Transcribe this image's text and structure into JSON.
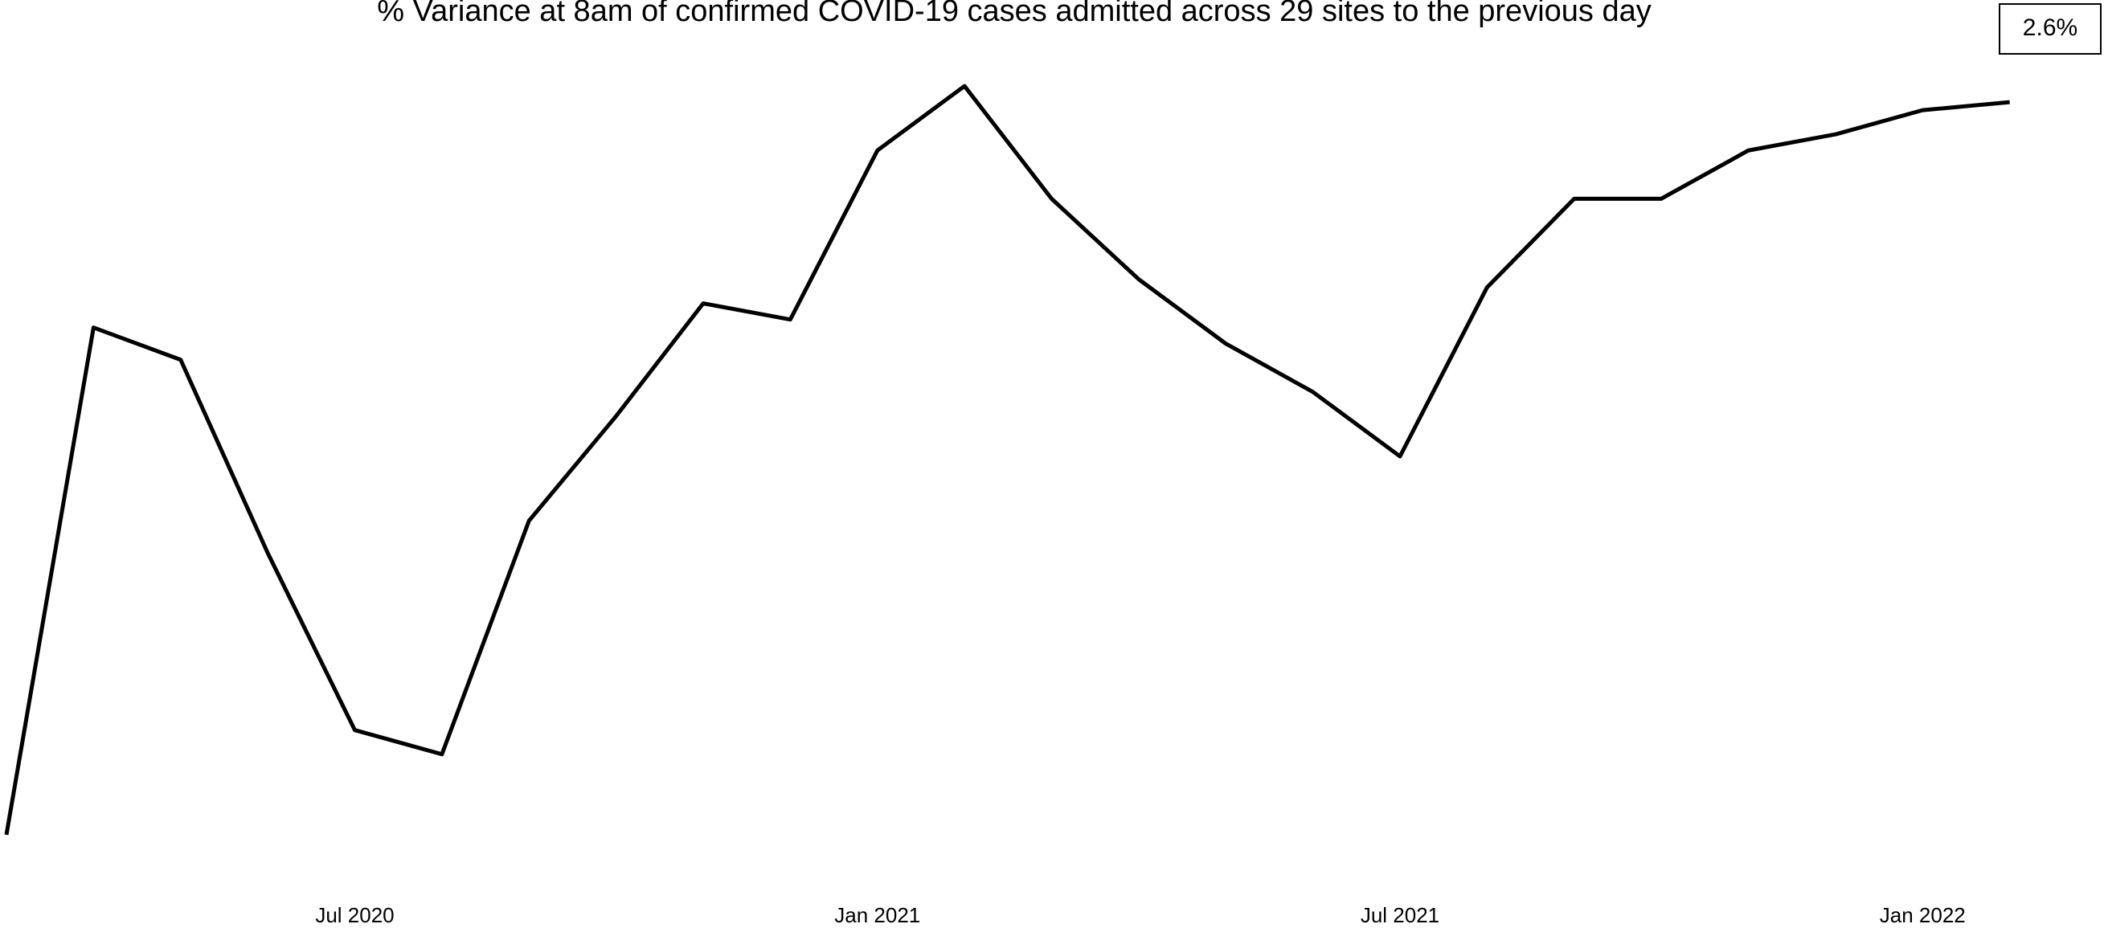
{
  "chart_data": {
    "type": "line",
    "title": "% Variance at 8am of confirmed COVID-19 cases admitted across 29 sites to the previous day",
    "annotation": "2.6%",
    "x": [
      "2020-03",
      "2020-04",
      "2020-05",
      "2020-06",
      "2020-07",
      "2020-08",
      "2020-09",
      "2020-10",
      "2020-11",
      "2020-12",
      "2021-01",
      "2021-02",
      "2021-03",
      "2021-04",
      "2021-05",
      "2021-06",
      "2021-07",
      "2021-08",
      "2021-09",
      "2021-10",
      "2021-11",
      "2021-12",
      "2022-01",
      "2022-02"
    ],
    "series": [
      {
        "color": "#000000",
        "values": [
          3,
          66,
          62,
          38,
          16,
          13,
          42,
          55,
          69,
          67,
          88,
          96,
          82,
          72,
          64,
          58,
          50,
          71,
          82,
          82,
          88,
          90,
          93,
          94
        ]
      }
    ],
    "xlim": [
      "2020-03",
      "2022-03"
    ],
    "xticks": [
      {
        "value": "2020-07",
        "label": "Jul 2020"
      },
      {
        "value": "2021-01",
        "label": "Jan 2021"
      },
      {
        "value": "2021-07",
        "label": "Jul 2021"
      },
      {
        "value": "2022-01",
        "label": "Jan 2022"
      }
    ],
    "ylim": [
      0,
      100
    ],
    "grid": false
  }
}
